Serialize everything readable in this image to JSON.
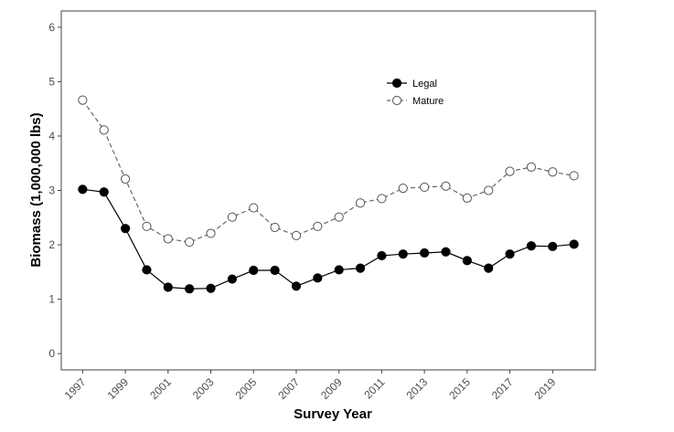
{
  "chart_data": {
    "type": "line",
    "title": "",
    "xlabel": "Survey Year",
    "ylabel": "Biomass (1,000,000 lbs)",
    "xlim": [
      1996.0,
      2021.0
    ],
    "ylim": [
      -0.3,
      6.3
    ],
    "x_ticks": [
      1997,
      1999,
      2001,
      2003,
      2005,
      2007,
      2009,
      2011,
      2013,
      2015,
      2017,
      2019
    ],
    "y_ticks": [
      0,
      1,
      2,
      3,
      4,
      5,
      6
    ],
    "grid": false,
    "legend_position": "top-right",
    "x": [
      1997,
      1998,
      1999,
      2000,
      2001,
      2002,
      2003,
      2004,
      2005,
      2006,
      2007,
      2008,
      2009,
      2010,
      2011,
      2012,
      2013,
      2014,
      2015,
      2016,
      2017,
      2018,
      2019,
      2020
    ],
    "series": [
      {
        "name": "Legal",
        "color": "#000000",
        "line_style": "solid",
        "marker": "filled-circle",
        "values": [
          3.02,
          2.97,
          2.3,
          1.54,
          1.22,
          1.19,
          1.2,
          1.37,
          1.53,
          1.53,
          1.24,
          1.39,
          1.54,
          1.57,
          1.8,
          1.83,
          1.85,
          1.87,
          1.71,
          1.57,
          1.83,
          1.98,
          1.97,
          2.01
        ]
      },
      {
        "name": "Mature",
        "color": "#666666",
        "line_style": "dashed",
        "marker": "open-circle",
        "values": [
          4.66,
          4.11,
          3.21,
          2.34,
          2.11,
          2.05,
          2.21,
          2.51,
          2.68,
          2.32,
          2.17,
          2.34,
          2.51,
          2.77,
          2.85,
          3.04,
          3.06,
          3.08,
          2.86,
          3.0,
          3.35,
          3.43,
          3.34,
          3.27
        ]
      }
    ]
  }
}
